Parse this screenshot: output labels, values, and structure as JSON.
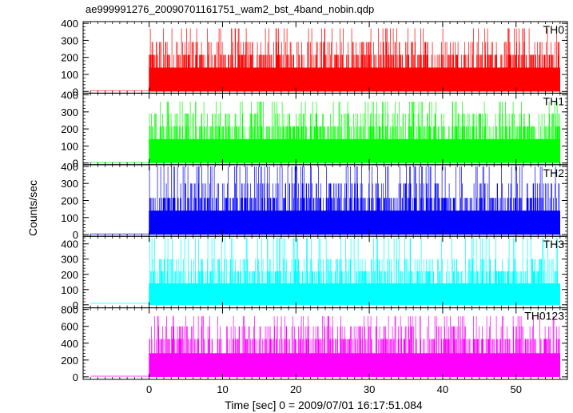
{
  "chart_data": {
    "type": "line",
    "title": "ae999991276_20090701161751_wam2_bst_4band_nobin.qdp",
    "xlabel": "Time [sec] 0 = 2009/07/01 16:17:51.084",
    "ylabel": "Counts/sec",
    "xlim": [
      -9,
      57
    ],
    "x_ticks": [
      0,
      10,
      20,
      30,
      40,
      50
    ],
    "x_tick_labels": [
      "0",
      "10",
      "20",
      "30",
      "40",
      "50"
    ],
    "signal_start": 0,
    "signal_end": 56,
    "panels": [
      {
        "name": "TH0",
        "color": "#ff0000",
        "ylim": [
          -10,
          410
        ],
        "ticks": [
          0,
          100,
          200,
          300,
          400
        ],
        "tick_labels": [
          "0",
          "100",
          "200",
          "300",
          "400"
        ],
        "pre_level": 5,
        "base_level": 140,
        "levels": [
          140,
          215,
          290,
          370
        ]
      },
      {
        "name": "TH1",
        "color": "#00ff00",
        "ylim": [
          -10,
          410
        ],
        "ticks": [
          0,
          100,
          200,
          300,
          400
        ],
        "tick_labels": [
          "0",
          "100",
          "200",
          "300",
          "400"
        ],
        "pre_level": 3,
        "base_level": 140,
        "levels": [
          140,
          215,
          290,
          360
        ]
      },
      {
        "name": "TH2",
        "color": "#0000ff",
        "ylim": [
          -10,
          410
        ],
        "ticks": [
          0,
          100,
          200,
          300,
          400
        ],
        "tick_labels": [
          "0",
          "100",
          "200",
          "300",
          "400"
        ],
        "pre_level": 4,
        "base_level": 140,
        "levels": [
          140,
          215,
          300,
          400
        ]
      },
      {
        "name": "TH3",
        "color": "#00ffff",
        "ylim": [
          -20,
          450
        ],
        "ticks": [
          0,
          100,
          200,
          300,
          400
        ],
        "tick_labels": [
          "0",
          "100",
          "200",
          "300",
          "400"
        ],
        "pre_level": 10,
        "base_level": 140,
        "levels": [
          140,
          220,
          300,
          380,
          440
        ]
      },
      {
        "name": "TH0123",
        "color": "#ff00ff",
        "ylim": [
          -30,
          820
        ],
        "ticks": [
          0,
          200,
          400,
          600,
          800
        ],
        "tick_labels": [
          "0",
          "200",
          "400",
          "600",
          "800"
        ],
        "pre_level": 8,
        "base_level": 280,
        "levels": [
          280,
          450,
          600,
          720
        ]
      }
    ]
  }
}
